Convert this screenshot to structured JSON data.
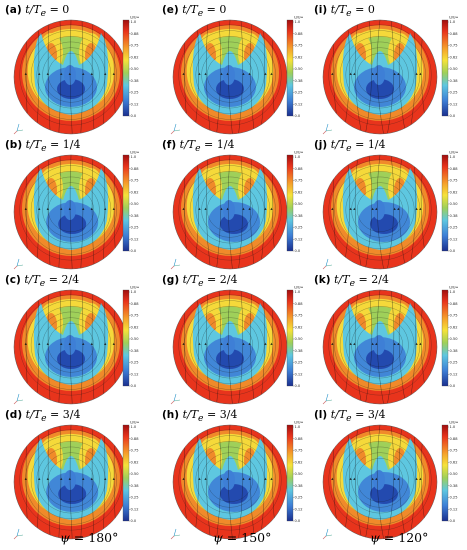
{
  "panels": [
    {
      "letter": "(a)",
      "phase": "0"
    },
    {
      "letter": "(e)",
      "phase": "0"
    },
    {
      "letter": "(i)",
      "phase": "0"
    },
    {
      "letter": "(b)",
      "phase": "1/4"
    },
    {
      "letter": "(f)",
      "phase": "1/4"
    },
    {
      "letter": "(j)",
      "phase": "1/4"
    },
    {
      "letter": "(c)",
      "phase": "2/4"
    },
    {
      "letter": "(g)",
      "phase": "2/4"
    },
    {
      "letter": "(k)",
      "phase": "2/4"
    },
    {
      "letter": "(d)",
      "phase": "3/4"
    },
    {
      "letter": "(h)",
      "phase": "3/4"
    },
    {
      "letter": "(l)",
      "phase": "3/4"
    }
  ],
  "time_symbol": "t/T",
  "time_subscript": "e",
  "colorbar": {
    "header": "U/U∞",
    "ticks": [
      "1.0",
      "0.88",
      "0.75",
      "0.62",
      "0.50",
      "0.38",
      "0.25",
      "0.12",
      "0.0"
    ]
  },
  "column_labels": [
    {
      "symbol": "ψ",
      "value": "= 180°"
    },
    {
      "symbol": "ψ",
      "value": "= 150°"
    },
    {
      "symbol": "ψ",
      "value": "= 120°"
    }
  ],
  "colors": {
    "red": "#e8341c",
    "orange": "#f08a2a",
    "yellow": "#f5d93a",
    "green": "#9fd05a",
    "cyan": "#5ec7e0",
    "blue": "#3e7fd6",
    "navy": "#1f3fa8"
  }
}
